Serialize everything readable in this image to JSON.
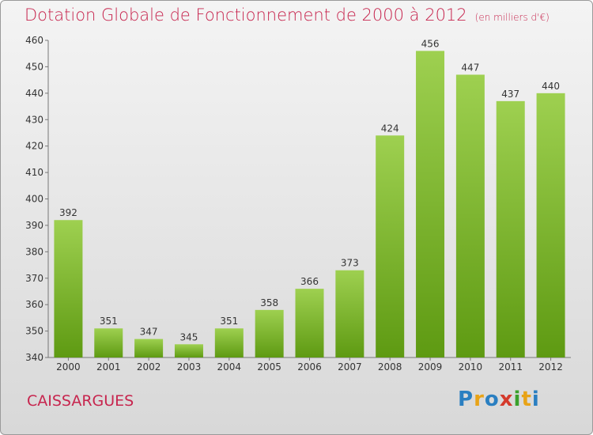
{
  "title": "Dotation Globale de Fonctionnement de 2000 à 2012",
  "unit": "(en milliers d'€)",
  "commune": "CAISSARGUES",
  "logo": "Proxiti",
  "colors": {
    "title": "#c7254e",
    "bar_top": "#9ed050",
    "bar_bottom": "#5e9a12"
  },
  "chart_data": {
    "type": "bar",
    "categories": [
      "2000",
      "2001",
      "2002",
      "2003",
      "2004",
      "2005",
      "2006",
      "2007",
      "2008",
      "2009",
      "2010",
      "2011",
      "2012"
    ],
    "values": [
      392,
      351,
      347,
      345,
      351,
      358,
      366,
      373,
      424,
      456,
      447,
      437,
      440
    ],
    "ylim": [
      340,
      460
    ],
    "yticks": [
      340,
      350,
      360,
      370,
      380,
      390,
      400,
      410,
      420,
      430,
      440,
      450,
      460
    ],
    "grid": false
  }
}
